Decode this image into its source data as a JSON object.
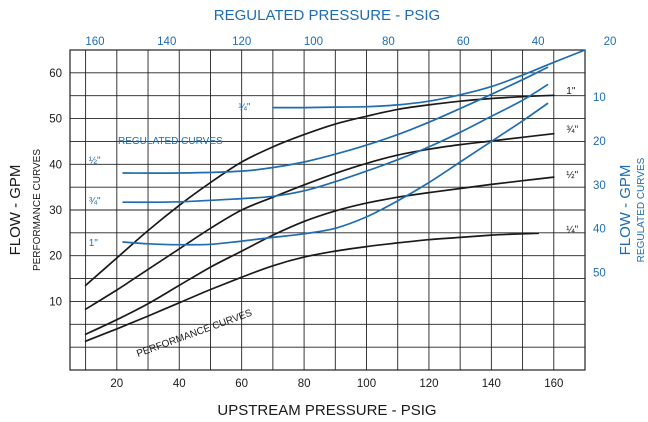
{
  "colors": {
    "black": "#1a1a1a",
    "blue": "#1f6db0",
    "grid": "#222222"
  },
  "chart_data": {
    "type": "line",
    "title": "REGULATED PRESSURE - PSIG",
    "xlabel": "UPSTREAM PRESSURE - PSIG",
    "ylabel_left": "FLOW - GPM",
    "ylabel_left_sub": "PERFORMANCE CURVES",
    "ylabel_right": "FLOW - GPM",
    "ylabel_right_sub": "REGULATED CURVES",
    "xlim": [
      5,
      170
    ],
    "ylim": [
      -5,
      65
    ],
    "grid": true,
    "x_ticks": [
      "20",
      "40",
      "60",
      "80",
      "100",
      "120",
      "140",
      "160"
    ],
    "x_tick_values": [
      20,
      40,
      60,
      80,
      100,
      120,
      140,
      160
    ],
    "left_ticks": [
      "10",
      "20",
      "30",
      "40",
      "50",
      "60"
    ],
    "left_tick_values": [
      10,
      20,
      30,
      40,
      50,
      60
    ],
    "top_ticks": [
      "160",
      "140",
      "120",
      "100",
      "80",
      "60",
      "40",
      "20"
    ],
    "top_tick_x": [
      13,
      36,
      60,
      83,
      107,
      131,
      155,
      178
    ],
    "right_ticks": [
      "10",
      "20",
      "30",
      "40",
      "50"
    ],
    "right_tick_y": [
      54.7,
      45.1,
      35.5,
      25.9,
      16.3
    ],
    "annotations": {
      "regulated_curves": "REGULATED CURVES",
      "performance_curves": "PERFORMANCE CURVES"
    },
    "series": [
      {
        "group": "performance",
        "name": "1\"",
        "color": "#1a1a1a",
        "x": [
          10,
          20,
          30,
          40,
          50,
          60,
          70,
          80,
          90,
          100,
          110,
          120,
          130,
          140,
          150,
          160
        ],
        "y": [
          13.5,
          19.5,
          25.5,
          31,
          36,
          40.5,
          43.8,
          46.5,
          48.8,
          50.5,
          52,
          53,
          53.8,
          54.4,
          54.8,
          55.1
        ]
      },
      {
        "group": "performance",
        "name": "¾\"",
        "color": "#1a1a1a",
        "x": [
          10,
          20,
          30,
          40,
          50,
          60,
          70,
          80,
          90,
          100,
          110,
          120,
          130,
          140,
          150,
          160
        ],
        "y": [
          8.3,
          12.5,
          17,
          21.5,
          26,
          30,
          32.8,
          35.5,
          38,
          40.2,
          42,
          43.3,
          44.3,
          45.1,
          45.9,
          46.7
        ]
      },
      {
        "group": "performance",
        "name": "½\"",
        "color": "#1a1a1a",
        "x": [
          10,
          20,
          30,
          40,
          50,
          60,
          70,
          80,
          90,
          100,
          110,
          120,
          130,
          140,
          150,
          160
        ],
        "y": [
          2.8,
          6,
          9.5,
          13.5,
          17.5,
          21,
          24.5,
          27.5,
          29.8,
          31.5,
          32.8,
          33.8,
          34.7,
          35.6,
          36.4,
          37.2
        ]
      },
      {
        "group": "performance",
        "name": "¼\"",
        "color": "#1a1a1a",
        "x": [
          10,
          20,
          30,
          40,
          50,
          60,
          70,
          80,
          90,
          100,
          110,
          120,
          130,
          140,
          150,
          155
        ],
        "y": [
          1.3,
          4,
          6.8,
          9.7,
          12.6,
          15.3,
          17.8,
          19.7,
          21,
          22,
          22.8,
          23.5,
          24,
          24.5,
          24.8,
          24.9
        ]
      },
      {
        "group": "regulated",
        "name": "¼\"",
        "color": "#1f6db0",
        "x": [
          70,
          80,
          90,
          100,
          110,
          120,
          130,
          140,
          150,
          160,
          170
        ],
        "y": [
          52.4,
          52.4,
          52.5,
          52.6,
          53,
          53.8,
          55.2,
          57,
          59.5,
          62.3,
          65
        ]
      },
      {
        "group": "regulated",
        "name": "½\"",
        "color": "#1f6db0",
        "x": [
          22,
          40,
          60,
          70,
          80,
          90,
          100,
          110,
          120,
          130,
          140,
          150,
          158
        ],
        "y": [
          38.1,
          38.1,
          38.5,
          39.3,
          40.5,
          42.2,
          44.2,
          46.5,
          49.2,
          52.2,
          55.3,
          58.5,
          61.2
        ]
      },
      {
        "group": "regulated",
        "name": "¾\"",
        "color": "#1f6db0",
        "x": [
          22,
          40,
          60,
          70,
          80,
          90,
          100,
          110,
          120,
          130,
          140,
          150,
          158
        ],
        "y": [
          31.7,
          31.8,
          32.5,
          33,
          34.2,
          36.2,
          38.5,
          41,
          43.8,
          47,
          50.5,
          54,
          57.4
        ]
      },
      {
        "group": "regulated",
        "name": "1\"",
        "color": "#1f6db0",
        "x": [
          22,
          30,
          40,
          50,
          60,
          70,
          80,
          90,
          100,
          110,
          120,
          130,
          140,
          150,
          158
        ],
        "y": [
          23,
          22.6,
          22.4,
          22.5,
          23.2,
          24,
          24.8,
          26,
          28.5,
          32,
          36,
          40.5,
          45,
          49.5,
          53.3
        ]
      }
    ],
    "series_labels": [
      {
        "group": "performance",
        "text": "1\"",
        "x": 164,
        "y": 56.3
      },
      {
        "group": "performance",
        "text": "¾\"",
        "x": 164,
        "y": 47.8
      },
      {
        "group": "performance",
        "text": "½\"",
        "x": 164,
        "y": 37.9
      },
      {
        "group": "performance",
        "text": "¼\"",
        "x": 164,
        "y": 26.0
      },
      {
        "group": "regulated",
        "text": "¼\"",
        "x": 59,
        "y": 52.8
      },
      {
        "group": "regulated",
        "text": "½\"",
        "x": 11,
        "y": 41.0
      },
      {
        "group": "regulated",
        "text": "¾\"",
        "x": 11,
        "y": 32.2
      },
      {
        "group": "regulated",
        "text": "1\"",
        "x": 11,
        "y": 23.0
      }
    ]
  }
}
